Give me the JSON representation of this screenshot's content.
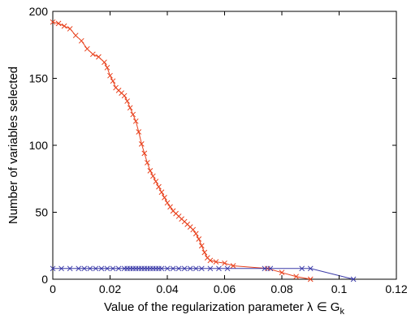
{
  "chart_data": {
    "type": "line",
    "title": "",
    "xlabel": "Value of the regularization parameter λ ∈ G",
    "xlabel_subscript": "k",
    "ylabel": "Number of variables selected",
    "xlim": [
      0,
      0.12
    ],
    "ylim": [
      0,
      200
    ],
    "xticks": [
      "0",
      "0.02",
      "0.04",
      "0.06",
      "0.08",
      "0.1",
      "0.12"
    ],
    "yticks": [
      "0",
      "50",
      "100",
      "150",
      "200"
    ],
    "grid": false,
    "legend": "none",
    "marker": "x",
    "series": [
      {
        "color": "#e8401c",
        "x": [
          0,
          0.002,
          0.004,
          0.006,
          0.008,
          0.01,
          0.012,
          0.014,
          0.016,
          0.018,
          0.019,
          0.02,
          0.021,
          0.022,
          0.023,
          0.024,
          0.025,
          0.026,
          0.027,
          0.028,
          0.029,
          0.03,
          0.031,
          0.032,
          0.033,
          0.034,
          0.035,
          0.036,
          0.037,
          0.038,
          0.039,
          0.04,
          0.041,
          0.042,
          0.043,
          0.044,
          0.045,
          0.046,
          0.047,
          0.048,
          0.049,
          0.05,
          0.051,
          0.052,
          0.053,
          0.054,
          0.055,
          0.057,
          0.06,
          0.063,
          0.075,
          0.08,
          0.085,
          0.09
        ],
        "values": [
          192,
          191,
          189,
          187,
          182,
          178,
          172,
          168,
          166,
          162,
          158,
          152,
          148,
          143,
          141,
          139,
          137,
          133,
          128,
          123,
          118,
          110,
          101,
          94,
          87,
          81,
          77,
          73,
          69,
          65,
          61,
          57,
          54,
          51,
          49,
          47,
          45,
          43,
          41,
          39,
          37,
          34,
          30,
          25,
          20,
          16,
          14,
          13,
          12,
          10,
          8,
          5,
          2,
          0
        ]
      },
      {
        "color": "#3a3aa8",
        "x": [
          0,
          0.003,
          0.006,
          0.009,
          0.011,
          0.013,
          0.015,
          0.017,
          0.019,
          0.021,
          0.023,
          0.025,
          0.026,
          0.027,
          0.028,
          0.029,
          0.03,
          0.031,
          0.032,
          0.033,
          0.034,
          0.035,
          0.036,
          0.037,
          0.038,
          0.04,
          0.042,
          0.044,
          0.046,
          0.048,
          0.05,
          0.052,
          0.055,
          0.058,
          0.061,
          0.074,
          0.076,
          0.087,
          0.09,
          0.105
        ],
        "values": [
          8,
          8,
          8,
          8,
          8,
          8,
          8,
          8,
          8,
          8,
          8,
          8,
          8,
          8,
          8,
          8,
          8,
          8,
          8,
          8,
          8,
          8,
          8,
          8,
          8,
          8,
          8,
          8,
          8,
          8,
          8,
          8,
          8,
          8,
          8,
          8,
          8,
          8,
          8,
          0
        ]
      }
    ]
  }
}
